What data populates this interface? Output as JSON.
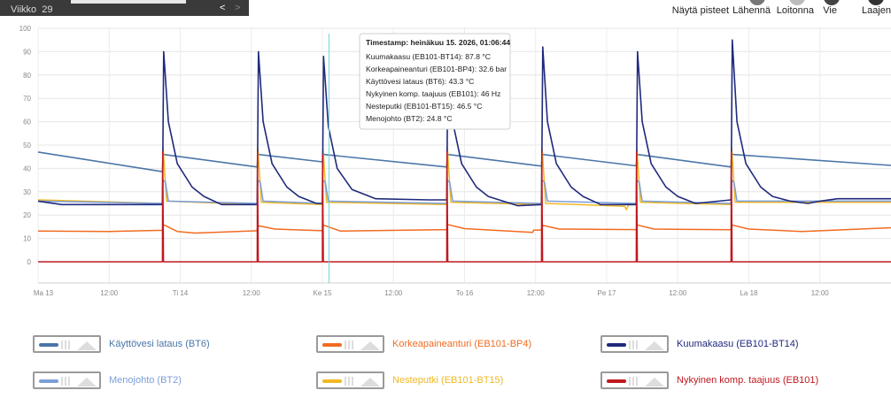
{
  "week": {
    "label": "Viikko",
    "number": "29",
    "prev": "<",
    "next": ">"
  },
  "toolbar": {
    "show_points": "Näytä pisteet",
    "zoom_in": "Lähennä",
    "zoom_out": "Loitonna",
    "export": "Vie",
    "expand": "Laajen"
  },
  "tooltip": {
    "timestamp": "Timestamp: heinäkuu 15. 2026, 01:06:44",
    "lines": [
      "Kuumakaasu (EB101-BT14): 87.8 °C",
      "Korkeapaineanturi (EB101-BP4): 32.6 bar",
      "Käyttövesi lataus (BT6): 43.3 °C",
      "Nykyinen komp. taajuus (EB101): 46 Hz",
      "Nesteputki (EB101-BT15): 46.5 °C",
      "Menojohto (BT2): 24.8 °C"
    ]
  },
  "legend": [
    {
      "label": "Käyttövesi lataus (BT6)",
      "color": "#4a76a8"
    },
    {
      "label": "Korkeapaineanturi (EB101-BP4)",
      "color": "#f26b21"
    },
    {
      "label": "Kuumakaasu (EB101-BT14)",
      "color": "#1f2a7c"
    },
    {
      "label": "Menojohto (BT2)",
      "color": "#7b9ed8"
    },
    {
      "label": "Nesteputki (EB101-BT15)",
      "color": "#f0b823"
    },
    {
      "label": "Nykyinen komp. taajuus (EB101)",
      "color": "#c0191f"
    }
  ],
  "chart_data": {
    "type": "line",
    "ylim": [
      0,
      100
    ],
    "yticks": [
      0,
      10,
      20,
      30,
      40,
      50,
      60,
      70,
      80,
      90,
      100
    ],
    "xlim": [
      "2026-07-13T00:00",
      "2026-07-19T00:00"
    ],
    "xticks": [
      "Ma 13",
      "12:00",
      "Ti 14",
      "12:00",
      "Ke 15",
      "12:00",
      "To 16",
      "12:00",
      "Pe 17",
      "12:00",
      "La 18",
      "12:00"
    ],
    "grid": true,
    "cursor_time": "2026-07-15T01:06:44",
    "cycle_times": [
      "2026-07-13T21:00",
      "2026-07-14T13:00",
      "2026-07-15T00:00",
      "2026-07-15T21:00",
      "2026-07-16T13:00",
      "2026-07-17T05:00",
      "2026-07-17T21:00"
    ],
    "series": [
      {
        "name": "Käyttövesi lataus (BT6)",
        "color": "#4a76a8",
        "width": 1.6,
        "points": [
          [
            "2026-07-13T00:00",
            47
          ],
          [
            "2026-07-13T21:00",
            38.6
          ],
          [
            "2026-07-13T21:06",
            46
          ],
          [
            "2026-07-14T13:00",
            40.6
          ],
          [
            "2026-07-14T13:06",
            46
          ],
          [
            "2026-07-15T00:00",
            42.8
          ],
          [
            "2026-07-15T00:06",
            46
          ],
          [
            "2026-07-15T21:00",
            40.6
          ],
          [
            "2026-07-15T21:06",
            46
          ],
          [
            "2026-07-16T13:00",
            41
          ],
          [
            "2026-07-16T13:06",
            46
          ],
          [
            "2026-07-17T05:00",
            41.1
          ],
          [
            "2026-07-17T05:06",
            46
          ],
          [
            "2026-07-17T21:00",
            40.6
          ],
          [
            "2026-07-17T21:06",
            46
          ],
          [
            "2026-07-19T00:00",
            41.3
          ]
        ]
      },
      {
        "name": "Korkeapaineanturi (EB101-BP4)",
        "color": "#f26b21",
        "width": 1.5,
        "points": [
          [
            "2026-07-13T00:00",
            13.2
          ],
          [
            "2026-07-13T12:00",
            13
          ],
          [
            "2026-07-13T21:00",
            13.5
          ],
          [
            "2026-07-13T21:06",
            16
          ],
          [
            "2026-07-13T23:30",
            13
          ],
          [
            "2026-07-14T02:30",
            12.3
          ],
          [
            "2026-07-14T13:00",
            13.3
          ],
          [
            "2026-07-14T13:06",
            15.5
          ],
          [
            "2026-07-14T16:00",
            14
          ],
          [
            "2026-07-15T00:00",
            13.3
          ],
          [
            "2026-07-15T00:06",
            15.8
          ],
          [
            "2026-07-15T03:00",
            13.2
          ],
          [
            "2026-07-15T21:00",
            13.8
          ],
          [
            "2026-07-15T21:06",
            16
          ],
          [
            "2026-07-16T00:00",
            14.2
          ],
          [
            "2026-07-16T11:30",
            12.6
          ],
          [
            "2026-07-16T11:42",
            13.6
          ],
          [
            "2026-07-16T13:00",
            13.6
          ],
          [
            "2026-07-16T13:06",
            15.7
          ],
          [
            "2026-07-16T16:00",
            14
          ],
          [
            "2026-07-17T05:00",
            13.8
          ],
          [
            "2026-07-17T05:06",
            15.8
          ],
          [
            "2026-07-17T08:00",
            14
          ],
          [
            "2026-07-17T21:00",
            13.7
          ],
          [
            "2026-07-17T21:06",
            15.8
          ],
          [
            "2026-07-18T00:00",
            14
          ],
          [
            "2026-07-18T09:00",
            13
          ],
          [
            "2026-07-19T00:00",
            14.6
          ]
        ]
      },
      {
        "name": "Nesteputki (EB101-BT15)",
        "color": "#f0b823",
        "width": 1.5,
        "points": [
          [
            "2026-07-13T00:00",
            26.5
          ],
          [
            "2026-07-13T21:00",
            25
          ],
          [
            "2026-07-13T21:06",
            49
          ],
          [
            "2026-07-13T21:42",
            26
          ],
          [
            "2026-07-14T13:00",
            24.5
          ],
          [
            "2026-07-14T13:06",
            49
          ],
          [
            "2026-07-14T13:42",
            25.5
          ],
          [
            "2026-07-15T00:00",
            24.5
          ],
          [
            "2026-07-15T00:06",
            48.5
          ],
          [
            "2026-07-15T00:42",
            25.5
          ],
          [
            "2026-07-15T21:00",
            24.5
          ],
          [
            "2026-07-15T21:06",
            49
          ],
          [
            "2026-07-15T21:42",
            25.5
          ],
          [
            "2026-07-16T13:00",
            24.5
          ],
          [
            "2026-07-16T13:06",
            48.5
          ],
          [
            "2026-07-16T13:42",
            25
          ],
          [
            "2026-07-17T03:00",
            23.8
          ],
          [
            "2026-07-17T03:20",
            22.3
          ],
          [
            "2026-07-17T03:40",
            24.3
          ],
          [
            "2026-07-17T05:00",
            24.5
          ],
          [
            "2026-07-17T05:06",
            48.5
          ],
          [
            "2026-07-17T05:42",
            25.5
          ],
          [
            "2026-07-17T21:00",
            24.5
          ],
          [
            "2026-07-17T21:06",
            49
          ],
          [
            "2026-07-17T21:42",
            25.5
          ],
          [
            "2026-07-19T00:00",
            25.5
          ]
        ]
      },
      {
        "name": "Menojohto (BT2)",
        "color": "#7b9ed8",
        "width": 1.5,
        "points": [
          [
            "2026-07-13T00:00",
            26
          ],
          [
            "2026-07-13T21:00",
            25
          ],
          [
            "2026-07-13T21:06",
            35
          ],
          [
            "2026-07-13T21:30",
            34
          ],
          [
            "2026-07-13T22:00",
            26
          ],
          [
            "2026-07-14T13:00",
            25
          ],
          [
            "2026-07-14T13:06",
            35
          ],
          [
            "2026-07-14T13:30",
            34
          ],
          [
            "2026-07-14T14:00",
            26
          ],
          [
            "2026-07-15T00:00",
            25
          ],
          [
            "2026-07-15T00:06",
            35
          ],
          [
            "2026-07-15T00:30",
            34
          ],
          [
            "2026-07-15T01:00",
            26
          ],
          [
            "2026-07-15T21:00",
            25
          ],
          [
            "2026-07-15T21:06",
            35
          ],
          [
            "2026-07-15T21:30",
            34
          ],
          [
            "2026-07-15T22:00",
            26
          ],
          [
            "2026-07-16T13:00",
            25
          ],
          [
            "2026-07-16T13:06",
            35
          ],
          [
            "2026-07-16T13:30",
            34
          ],
          [
            "2026-07-16T14:00",
            26
          ],
          [
            "2026-07-17T05:00",
            25
          ],
          [
            "2026-07-17T05:06",
            35
          ],
          [
            "2026-07-17T05:30",
            34
          ],
          [
            "2026-07-17T06:00",
            26
          ],
          [
            "2026-07-17T21:00",
            25
          ],
          [
            "2026-07-17T21:06",
            35
          ],
          [
            "2026-07-17T21:30",
            34
          ],
          [
            "2026-07-17T22:00",
            26
          ],
          [
            "2026-07-19T00:00",
            26
          ]
        ]
      },
      {
        "name": "Kuumakaasu (EB101-BT14)",
        "color": "#1f2a7c",
        "width": 1.6,
        "points": [
          [
            "2026-07-13T00:00",
            26
          ],
          [
            "2026-07-13T04:00",
            24.5
          ],
          [
            "2026-07-13T21:00",
            24.5
          ],
          [
            "2026-07-13T21:12",
            90
          ],
          [
            "2026-07-13T22:00",
            60
          ],
          [
            "2026-07-13T23:30",
            42
          ],
          [
            "2026-07-14T02:00",
            32
          ],
          [
            "2026-07-14T04:00",
            28
          ],
          [
            "2026-07-14T07:00",
            24.5
          ],
          [
            "2026-07-14T13:00",
            24.5
          ],
          [
            "2026-07-14T13:12",
            90
          ],
          [
            "2026-07-14T14:00",
            60
          ],
          [
            "2026-07-14T15:30",
            42
          ],
          [
            "2026-07-14T18:00",
            32
          ],
          [
            "2026-07-14T20:00",
            28
          ],
          [
            "2026-07-14T23:00",
            25
          ],
          [
            "2026-07-15T00:00",
            25
          ],
          [
            "2026-07-15T00:12",
            88
          ],
          [
            "2026-07-15T01:00",
            58
          ],
          [
            "2026-07-15T02:30",
            40
          ],
          [
            "2026-07-15T05:00",
            31
          ],
          [
            "2026-07-15T09:00",
            27
          ],
          [
            "2026-07-15T18:00",
            26.5
          ],
          [
            "2026-07-15T21:00",
            26.5
          ],
          [
            "2026-07-15T21:12",
            91
          ],
          [
            "2026-07-15T22:00",
            60
          ],
          [
            "2026-07-15T23:30",
            42
          ],
          [
            "2026-07-16T02:00",
            32
          ],
          [
            "2026-07-16T04:00",
            28
          ],
          [
            "2026-07-16T09:00",
            24
          ],
          [
            "2026-07-16T13:00",
            24.5
          ],
          [
            "2026-07-16T13:12",
            92
          ],
          [
            "2026-07-16T14:00",
            60
          ],
          [
            "2026-07-16T15:30",
            42
          ],
          [
            "2026-07-16T18:00",
            32
          ],
          [
            "2026-07-16T20:00",
            28
          ],
          [
            "2026-07-16T23:00",
            24.5
          ],
          [
            "2026-07-17T05:00",
            24.5
          ],
          [
            "2026-07-17T05:12",
            90
          ],
          [
            "2026-07-17T06:00",
            60
          ],
          [
            "2026-07-17T07:30",
            42
          ],
          [
            "2026-07-17T10:00",
            32
          ],
          [
            "2026-07-17T12:00",
            28
          ],
          [
            "2026-07-17T15:00",
            25
          ],
          [
            "2026-07-17T21:00",
            26.5
          ],
          [
            "2026-07-17T21:12",
            95
          ],
          [
            "2026-07-17T22:00",
            60
          ],
          [
            "2026-07-17T23:30",
            42
          ],
          [
            "2026-07-18T02:00",
            32
          ],
          [
            "2026-07-18T04:00",
            28
          ],
          [
            "2026-07-18T07:00",
            26
          ],
          [
            "2026-07-18T10:00",
            25
          ],
          [
            "2026-07-18T12:00",
            26
          ],
          [
            "2026-07-18T15:00",
            27
          ],
          [
            "2026-07-19T00:00",
            27
          ]
        ]
      },
      {
        "name": "Nykyinen komp. taajuus (EB101)",
        "color": "#c0191f",
        "width": 1.5,
        "points": [
          [
            "2026-07-13T00:00",
            0
          ],
          [
            "2026-07-13T21:00",
            0
          ],
          [
            "2026-07-13T21:02",
            47
          ],
          [
            "2026-07-13T21:10",
            0
          ],
          [
            "2026-07-14T13:00",
            0
          ],
          [
            "2026-07-14T13:02",
            47
          ],
          [
            "2026-07-14T13:10",
            0
          ],
          [
            "2026-07-15T00:00",
            0
          ],
          [
            "2026-07-15T00:02",
            46
          ],
          [
            "2026-07-15T00:10",
            0
          ],
          [
            "2026-07-15T21:00",
            0
          ],
          [
            "2026-07-15T21:02",
            47
          ],
          [
            "2026-07-15T21:10",
            0
          ],
          [
            "2026-07-16T13:00",
            0
          ],
          [
            "2026-07-16T13:02",
            47
          ],
          [
            "2026-07-16T13:10",
            0
          ],
          [
            "2026-07-17T05:00",
            0
          ],
          [
            "2026-07-17T05:02",
            47
          ],
          [
            "2026-07-17T05:10",
            0
          ],
          [
            "2026-07-17T21:00",
            0
          ],
          [
            "2026-07-17T21:02",
            47
          ],
          [
            "2026-07-17T21:10",
            0
          ],
          [
            "2026-07-19T00:00",
            0
          ]
        ]
      }
    ]
  }
}
